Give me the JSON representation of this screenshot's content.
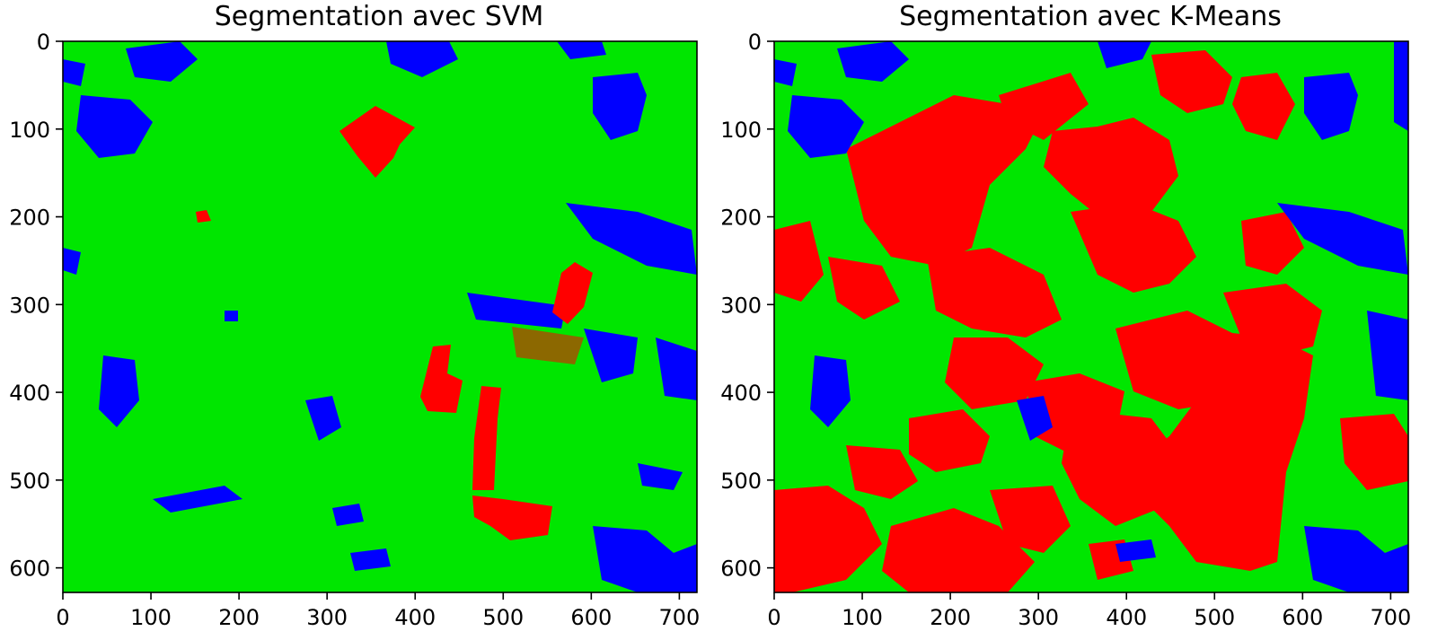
{
  "figure": {
    "colors": {
      "class_a": "#00e600",
      "class_b": "#ff0000",
      "class_c": "#0000ff",
      "axis": "#000000"
    }
  },
  "chart_data": [
    {
      "type": "heatmap",
      "title": "Segmentation avec SVM",
      "xlabel": "",
      "ylabel": "",
      "xlim": [
        0,
        720
      ],
      "ylim": [
        628,
        0
      ],
      "x_ticks": [
        0,
        100,
        200,
        300,
        400,
        500,
        600,
        700
      ],
      "y_ticks": [
        0,
        100,
        200,
        300,
        400,
        500,
        600
      ],
      "x_tick_labels": [
        "0",
        "100",
        "200",
        "300",
        "400",
        "500",
        "600",
        "700"
      ],
      "y_tick_labels": [
        "0",
        "100",
        "200",
        "300",
        "400",
        "500",
        "600"
      ],
      "grid": false,
      "classes": [
        "green",
        "red",
        "blue"
      ]
    },
    {
      "type": "heatmap",
      "title": "Segmentation avec K-Means",
      "xlabel": "",
      "ylabel": "",
      "xlim": [
        0,
        720
      ],
      "ylim": [
        628,
        0
      ],
      "x_ticks": [
        0,
        100,
        200,
        300,
        400,
        500,
        600,
        700
      ],
      "y_ticks": [
        0,
        100,
        200,
        300,
        400,
        500,
        600
      ],
      "x_tick_labels": [
        "0",
        "100",
        "200",
        "300",
        "400",
        "500",
        "600",
        "700"
      ],
      "y_tick_labels": [
        "0",
        "100",
        "200",
        "300",
        "400",
        "500",
        "600"
      ],
      "grid": false,
      "classes": [
        "green",
        "red",
        "blue"
      ]
    }
  ]
}
